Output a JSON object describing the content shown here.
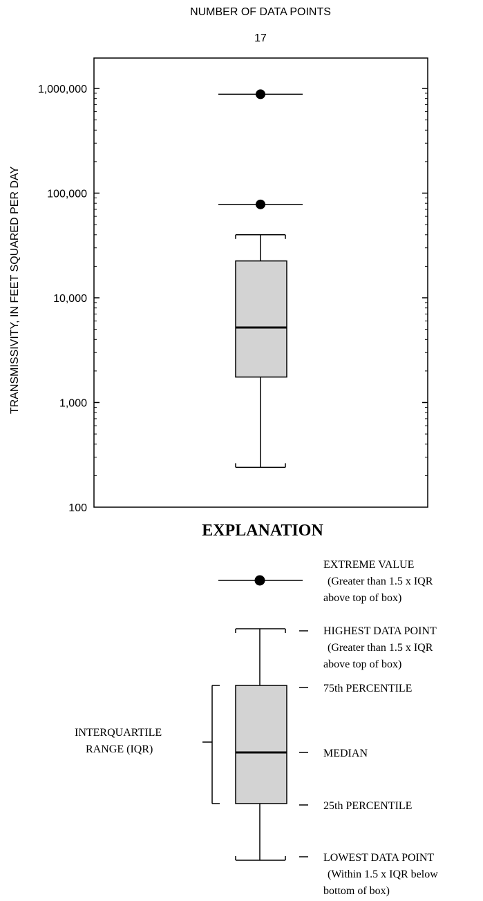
{
  "chart_data": {
    "type": "box",
    "header": "NUMBER OF DATA POINTS",
    "n": "17",
    "ylabel": "TRANSMISSIVITY, IN FEET SQUARED PER DAY",
    "yscale": "log",
    "ylim": [
      100,
      2000000
    ],
    "yticks": [
      {
        "value": 100,
        "label": "100"
      },
      {
        "value": 1000,
        "label": "1,000"
      },
      {
        "value": 10000,
        "label": "10,000"
      },
      {
        "value": 100000,
        "label": "100,000"
      },
      {
        "value": 1000000,
        "label": "1,000,000"
      }
    ],
    "box": {
      "lowest": 240,
      "q1": 1750,
      "median": 5200,
      "q3": 22500,
      "highest": 40000,
      "extremes": [
        78000,
        880000
      ]
    }
  },
  "explanation": {
    "title": "EXPLANATION",
    "extreme_value": "EXTREME VALUE",
    "extreme_note_1": "(Greater than 1.5 x IQR",
    "extreme_note_2": "above top of box)",
    "highest": "HIGHEST DATA POINT",
    "highest_note_1": "(Greater than 1.5 x IQR",
    "highest_note_2": "above top of box)",
    "p75": "75th PERCENTILE",
    "median": "MEDIAN",
    "p25": "25th PERCENTILE",
    "lowest": "LOWEST DATA POINT",
    "lowest_note_1": "(Within 1.5 x IQR below",
    "lowest_note_2": "bottom of box)",
    "iqr_1": "INTERQUARTILE",
    "iqr_2": "RANGE (IQR)"
  }
}
